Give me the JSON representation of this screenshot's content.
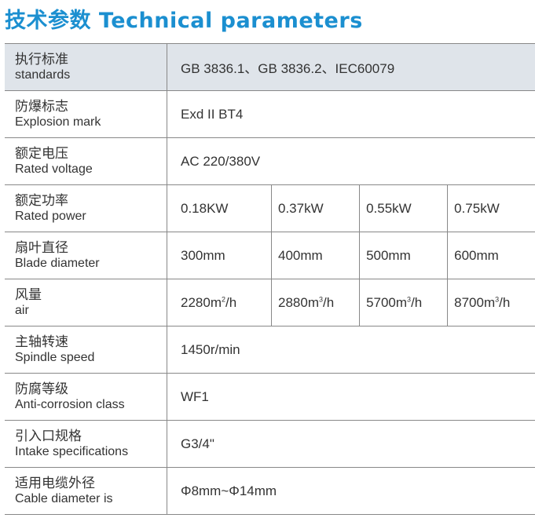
{
  "title": "技术参数 Technical parameters",
  "rows": [
    {
      "zh": "执行标准",
      "en": "standards",
      "value": "GB 3836.1、GB 3836.2、IEC60079"
    },
    {
      "zh": "防爆标志",
      "en": "Explosion mark",
      "value": "Exd II BT4"
    },
    {
      "zh": "额定电压",
      "en": "Rated voltage",
      "value": "AC 220/380V"
    },
    {
      "zh": "额定功率",
      "en": "Rated power",
      "values": [
        "0.18KW",
        "0.37kW",
        "0.55kW",
        "0.75kW"
      ]
    },
    {
      "zh": "扇叶直径",
      "en": "Blade diameter",
      "values": [
        "300mm",
        "400mm",
        "500mm",
        "600mm"
      ]
    },
    {
      "zh": "风量",
      "en": "air",
      "values": [
        [
          "2280m",
          "2",
          "/h"
        ],
        [
          "2880m",
          "3",
          "/h"
        ],
        [
          "5700m",
          "3",
          "/h"
        ],
        [
          "8700m",
          "3",
          "/h"
        ]
      ]
    },
    {
      "zh": "主轴转速",
      "en": "Spindle speed",
      "value": "1450r/min"
    },
    {
      "zh": "防腐等级",
      "en": "Anti-corrosion class",
      "value": "WF1"
    },
    {
      "zh": "引入口规格",
      "en": "Intake specifications",
      "value": "G3/4\""
    },
    {
      "zh": "适用电缆外径",
      "en": "Cable diameter is",
      "value": "Φ8mm~Φ14mm"
    }
  ]
}
